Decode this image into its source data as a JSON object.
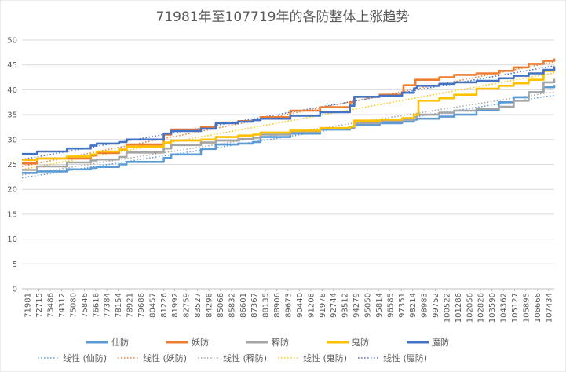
{
  "chart_data": {
    "type": "line",
    "title": "71981年至107719年的各防整体上涨趋势",
    "xlabel": "",
    "ylabel": "",
    "ylim": [
      0,
      50
    ],
    "yticks": [
      0,
      5,
      10,
      15,
      20,
      25,
      30,
      35,
      40,
      45,
      50
    ],
    "grid": "horizontal",
    "legend_placement": "bottom",
    "x_tick_labels": [
      "71981",
      "72715",
      "73486",
      "74312",
      "75080",
      "75846",
      "76616",
      "77384",
      "78154",
      "78921",
      "79686",
      "80457",
      "81226",
      "81992",
      "82759",
      "83527",
      "84298",
      "85066",
      "85832",
      "86601",
      "87367",
      "88135",
      "88906",
      "89673",
      "90440",
      "91208",
      "91978",
      "92744",
      "93512",
      "94279",
      "95050",
      "95814",
      "96585",
      "97351",
      "98214",
      "98983",
      "99752",
      "100522",
      "101286",
      "102056",
      "102826",
      "103590",
      "104362",
      "105127",
      "105895",
      "106666",
      "107434"
    ],
    "x_range": [
      71981,
      107719
    ],
    "series": [
      {
        "name": "仙防",
        "color": "#5b9bd5",
        "x": [
          71981,
          73000,
          75000,
          76600,
          77000,
          78500,
          79000,
          81500,
          82000,
          84000,
          85000,
          86500,
          87500,
          88000,
          90000,
          92000,
          94000,
          94300,
          96000,
          97500,
          98300,
          98500,
          100000,
          101000,
          102500,
          104000,
          105000,
          106000,
          107000,
          107719
        ],
        "y": [
          23.3,
          23.6,
          24.0,
          24.3,
          24.5,
          25.0,
          25.5,
          26.3,
          27.0,
          28.1,
          29.0,
          29.2,
          29.5,
          30.5,
          31.2,
          32.0,
          32.4,
          33.0,
          33.3,
          33.6,
          34.0,
          34.2,
          34.6,
          35.0,
          36.0,
          37.5,
          38.5,
          39.5,
          40.5,
          41.0
        ]
      },
      {
        "name": "妖防",
        "color": "#ed7d31",
        "x": [
          71981,
          73000,
          76600,
          77000,
          78500,
          79000,
          81500,
          82000,
          84000,
          85000,
          86500,
          87500,
          88000,
          90000,
          92000,
          94000,
          94300,
          96000,
          97500,
          97600,
          98400,
          100000,
          101000,
          102500,
          104000,
          105000,
          106000,
          107000,
          107719
        ],
        "y": [
          25.2,
          26.2,
          26.8,
          27.3,
          28.0,
          29.0,
          31.0,
          32.0,
          32.5,
          33.4,
          33.7,
          34.0,
          34.5,
          35.8,
          36.5,
          37.5,
          38.6,
          39.0,
          39.5,
          40.9,
          42.0,
          42.5,
          43.0,
          43.3,
          43.8,
          44.5,
          45.2,
          45.8,
          46.3
        ]
      },
      {
        "name": "释防",
        "color": "#a5a5a5",
        "x": [
          71981,
          73000,
          75000,
          76600,
          77000,
          78500,
          79000,
          81500,
          82000,
          84000,
          85000,
          86500,
          87500,
          88000,
          90000,
          92000,
          94000,
          94300,
          96000,
          97500,
          98300,
          98500,
          100000,
          101000,
          102500,
          104000,
          105000,
          106000,
          107000,
          107719
        ],
        "y": [
          23.9,
          24.6,
          25.4,
          25.8,
          26.0,
          26.5,
          27.4,
          28.2,
          28.9,
          29.4,
          29.8,
          30.1,
          30.4,
          31.0,
          31.6,
          32.2,
          32.6,
          33.3,
          33.7,
          34.0,
          34.5,
          35.0,
          35.4,
          35.8,
          36.2,
          36.6,
          37.8,
          39.5,
          41.5,
          42.2
        ]
      },
      {
        "name": "鬼防",
        "color": "#ffc000",
        "x": [
          71981,
          73000,
          75000,
          76600,
          77000,
          78500,
          79000,
          81500,
          82000,
          84000,
          85000,
          86500,
          87500,
          88000,
          90000,
          92000,
          94000,
          94300,
          96000,
          97500,
          98300,
          98600,
          100000,
          101000,
          102500,
          104000,
          105000,
          106000,
          107000,
          107719
        ],
        "y": [
          25.9,
          26.2,
          26.6,
          27.0,
          27.6,
          28.0,
          28.6,
          29.4,
          29.8,
          30.0,
          30.5,
          30.8,
          31.0,
          31.4,
          31.8,
          32.3,
          32.6,
          33.8,
          34.0,
          34.3,
          35.0,
          37.8,
          38.3,
          39.0,
          40.2,
          40.8,
          41.3,
          42.0,
          43.8,
          44.7
        ]
      },
      {
        "name": "魔防",
        "color": "#4472c4",
        "x": [
          71981,
          73000,
          75000,
          76600,
          77000,
          78500,
          79000,
          81500,
          82000,
          84000,
          85000,
          86500,
          87500,
          88000,
          90000,
          92000,
          94000,
          94300,
          96000,
          97500,
          98300,
          98500,
          100000,
          101000,
          102500,
          104000,
          105000,
          106000,
          107000,
          107719
        ],
        "y": [
          27.1,
          27.6,
          28.2,
          28.8,
          29.2,
          29.5,
          30.0,
          31.2,
          31.7,
          32.2,
          33.3,
          33.6,
          33.9,
          34.2,
          34.8,
          35.5,
          36.8,
          38.6,
          38.8,
          39.4,
          40.3,
          40.8,
          41.2,
          41.5,
          41.8,
          42.3,
          42.8,
          43.3,
          44.0,
          44.7
        ]
      }
    ],
    "trendlines": [
      {
        "name": "线性 (仙防)",
        "color": "#5b9bd5",
        "x": [
          71981,
          107719
        ],
        "y": [
          22.3,
          38.9
        ]
      },
      {
        "name": "线性 (妖防)",
        "color": "#ed7d31",
        "x": [
          71981,
          107719
        ],
        "y": [
          24.6,
          45.6
        ]
      },
      {
        "name": "线性 (释防)",
        "color": "#a5a5a5",
        "x": [
          71981,
          107719
        ],
        "y": [
          22.9,
          39.6
        ]
      },
      {
        "name": "线性 (鬼防)",
        "color": "#ffc000",
        "x": [
          71981,
          107719
        ],
        "y": [
          24.0,
          43.4
        ]
      },
      {
        "name": "线性 (魔防)",
        "color": "#4472c4",
        "x": [
          71981,
          107719
        ],
        "y": [
          26.0,
          44.8
        ]
      }
    ]
  }
}
